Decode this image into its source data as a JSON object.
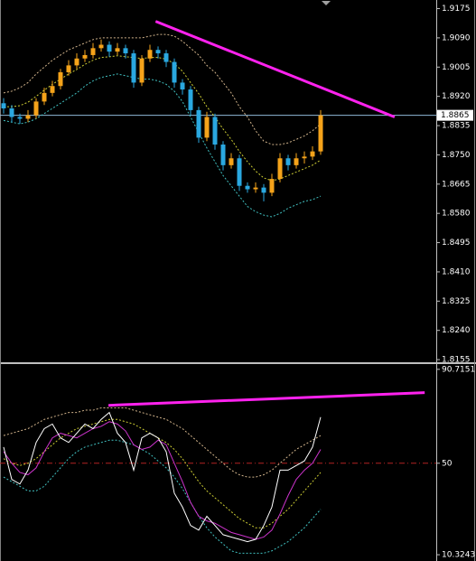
{
  "chart_data": [
    {
      "type": "candlestick",
      "open": [
        1.89,
        1.8885,
        1.886,
        1.8855,
        1.8865,
        1.8905,
        1.893,
        1.895,
        1.899,
        1.901,
        1.903,
        1.904,
        1.906,
        1.907,
        1.905,
        1.906,
        1.9045,
        1.896,
        1.903,
        1.9055,
        1.9045,
        1.902,
        1.896,
        1.894,
        1.888,
        1.88,
        1.886,
        1.878,
        1.872,
        1.874,
        1.866,
        1.865,
        1.8655,
        1.864,
        1.868,
        1.874,
        1.872,
        1.874,
        1.8745,
        1.876
      ],
      "high": [
        1.8915,
        1.8895,
        1.887,
        1.888,
        1.8915,
        1.8945,
        1.8965,
        1.9,
        1.9025,
        1.9045,
        1.9055,
        1.9075,
        1.9085,
        1.908,
        1.9075,
        1.907,
        1.9055,
        1.904,
        1.907,
        1.9065,
        1.9055,
        1.903,
        1.897,
        1.895,
        1.889,
        1.8875,
        1.887,
        1.879,
        1.8755,
        1.875,
        1.867,
        1.867,
        1.8665,
        1.8695,
        1.8755,
        1.875,
        1.8755,
        1.876,
        1.8775,
        1.888
      ],
      "low": [
        1.887,
        1.8845,
        1.884,
        1.8845,
        1.8855,
        1.8895,
        1.892,
        1.894,
        1.898,
        1.9,
        1.902,
        1.903,
        1.905,
        1.9035,
        1.904,
        1.903,
        1.8945,
        1.895,
        1.902,
        1.903,
        1.9005,
        1.8945,
        1.8925,
        1.8865,
        1.8785,
        1.879,
        1.8765,
        1.8705,
        1.871,
        1.8645,
        1.864,
        1.864,
        1.8615,
        1.863,
        1.867,
        1.8705,
        1.871,
        1.8725,
        1.8735,
        1.875
      ],
      "close": [
        1.8885,
        1.886,
        1.8855,
        1.8865,
        1.8905,
        1.893,
        1.895,
        1.899,
        1.901,
        1.903,
        1.904,
        1.906,
        1.907,
        1.905,
        1.906,
        1.9045,
        1.896,
        1.903,
        1.9055,
        1.9045,
        1.902,
        1.896,
        1.894,
        1.888,
        1.88,
        1.886,
        1.878,
        1.872,
        1.874,
        1.866,
        1.865,
        1.8655,
        1.864,
        1.868,
        1.874,
        1.872,
        1.874,
        1.8745,
        1.876,
        1.8865
      ],
      "up_color": "#f5a31a",
      "down_color": "#2aa8e0",
      "series": [
        {
          "color": "#d2b48c",
          "style": "dashed",
          "values": [
            1.893,
            1.8935,
            1.8945,
            1.896,
            1.8985,
            1.9005,
            1.9025,
            1.904,
            1.9055,
            1.9065,
            1.9075,
            1.9085,
            1.909,
            1.909,
            1.909,
            1.909,
            1.909,
            1.909,
            1.9095,
            1.91,
            1.91,
            1.9095,
            1.908,
            1.906,
            1.904,
            1.901,
            1.899,
            1.896,
            1.893,
            1.889,
            1.886,
            1.882,
            1.879,
            1.878,
            1.878,
            1.8785,
            1.8795,
            1.8805,
            1.882,
            1.884
          ]
        },
        {
          "color": "#cccc33",
          "style": "dashed",
          "values": [
            1.889,
            1.889,
            1.8893,
            1.8903,
            1.892,
            1.8938,
            1.8955,
            1.897,
            1.8985,
            1.8998,
            1.9013,
            1.9025,
            1.9033,
            1.9035,
            1.9038,
            1.9035,
            1.9033,
            1.903,
            1.9033,
            1.9033,
            1.9028,
            1.9015,
            1.8993,
            1.896,
            1.8928,
            1.889,
            1.886,
            1.8825,
            1.8795,
            1.876,
            1.873,
            1.8703,
            1.8683,
            1.8675,
            1.868,
            1.869,
            1.87,
            1.871,
            1.872,
            1.8735
          ]
        },
        {
          "color": "#40c0c0",
          "style": "dashed",
          "values": [
            1.885,
            1.8845,
            1.884,
            1.8845,
            1.8855,
            1.887,
            1.8885,
            1.89,
            1.8915,
            1.893,
            1.895,
            1.8965,
            1.8975,
            1.898,
            1.8985,
            1.898,
            1.8975,
            1.897,
            1.897,
            1.8965,
            1.8955,
            1.8935,
            1.8905,
            1.886,
            1.8815,
            1.877,
            1.873,
            1.869,
            1.866,
            1.863,
            1.86,
            1.8585,
            1.8575,
            1.857,
            1.858,
            1.8595,
            1.8605,
            1.8615,
            1.862,
            1.863
          ]
        }
      ],
      "current_price": 1.8865,
      "price_line_color": "#8fb8d8",
      "trendline": {
        "x": [
          18.7,
          48.1
        ],
        "y": [
          1.9138,
          1.886
        ],
        "color": "#ff22ee"
      },
      "ylim": [
        1.815,
        1.92
      ],
      "yticks": [
        1.9175,
        {
          "value": 1.909,
          "label": "1.9090"
        },
        1.9005,
        {
          "value": 1.892,
          "label": "1.8920"
        },
        1.8835,
        {
          "value": 1.875,
          "label": "1.8750"
        },
        1.8665,
        {
          "value": 1.858,
          "label": "1.8580"
        },
        1.8495,
        {
          "value": 1.841,
          "label": "1.8410"
        },
        1.8325,
        {
          "value": 1.824,
          "label": "1.8240"
        },
        1.8155
      ]
    },
    {
      "type": "line",
      "series": [
        {
          "color": "#d2b48c",
          "style": "dashed",
          "values": [
            62,
            63,
            64,
            65,
            67,
            69,
            70,
            71,
            72,
            72,
            73,
            73,
            74,
            74,
            74,
            74,
            73,
            72,
            71,
            70,
            69,
            67,
            65,
            62,
            59,
            56,
            53,
            50,
            47,
            45,
            44,
            44,
            45,
            47,
            50,
            53,
            56,
            58,
            60,
            62
          ]
        },
        {
          "color": "#cccc33",
          "style": "dashed",
          "values": [
            52,
            50,
            49,
            50,
            52,
            55,
            58,
            61,
            63,
            65,
            66,
            67,
            68,
            69,
            69,
            68,
            67,
            65,
            63,
            61,
            59,
            56,
            52,
            47,
            42,
            38,
            35,
            32,
            29,
            26,
            24,
            22,
            22,
            24,
            27,
            30,
            34,
            38,
            42,
            46
          ]
        },
        {
          "color": "#40c0c0",
          "style": "dashed",
          "values": [
            44,
            42,
            40,
            38,
            38,
            40,
            44,
            48,
            52,
            55,
            57,
            58,
            59,
            60,
            60,
            59,
            58,
            56,
            54,
            51,
            48,
            44,
            39,
            33,
            27,
            22,
            18,
            15,
            12,
            11,
            11,
            11,
            11,
            12,
            14,
            16,
            19,
            22,
            26,
            30
          ]
        },
        {
          "color": "#cc33cc",
          "style": "solid",
          "values": [
            55,
            50,
            46,
            45,
            48,
            55,
            61,
            63,
            62,
            61,
            63,
            65,
            66,
            68,
            67,
            64,
            58,
            56,
            57,
            60,
            58,
            50,
            42,
            33,
            27,
            25,
            24,
            22,
            20,
            19,
            18,
            17,
            18,
            21,
            28,
            36,
            43,
            47,
            50,
            56
          ]
        },
        {
          "color": "#ffffff",
          "style": "solid",
          "values": [
            57,
            43,
            41,
            47,
            59,
            65,
            67,
            61,
            59,
            63,
            67,
            65,
            69,
            72,
            63,
            59,
            47,
            61,
            63,
            61,
            55,
            37,
            31,
            23,
            21,
            27,
            23,
            19,
            18,
            17,
            16,
            17,
            23,
            31,
            47,
            47,
            49,
            51,
            57,
            70
          ]
        }
      ],
      "level": 50,
      "level_color": "#b22222",
      "trendline": {
        "x": [
          12.9,
          51.8
        ],
        "y": [
          75.1,
          80.6
        ],
        "color": "#ff22ee"
      },
      "ylim": [
        8,
        93
      ],
      "yticks": [
        90.7151,
        50,
        10.3243
      ]
    }
  ]
}
